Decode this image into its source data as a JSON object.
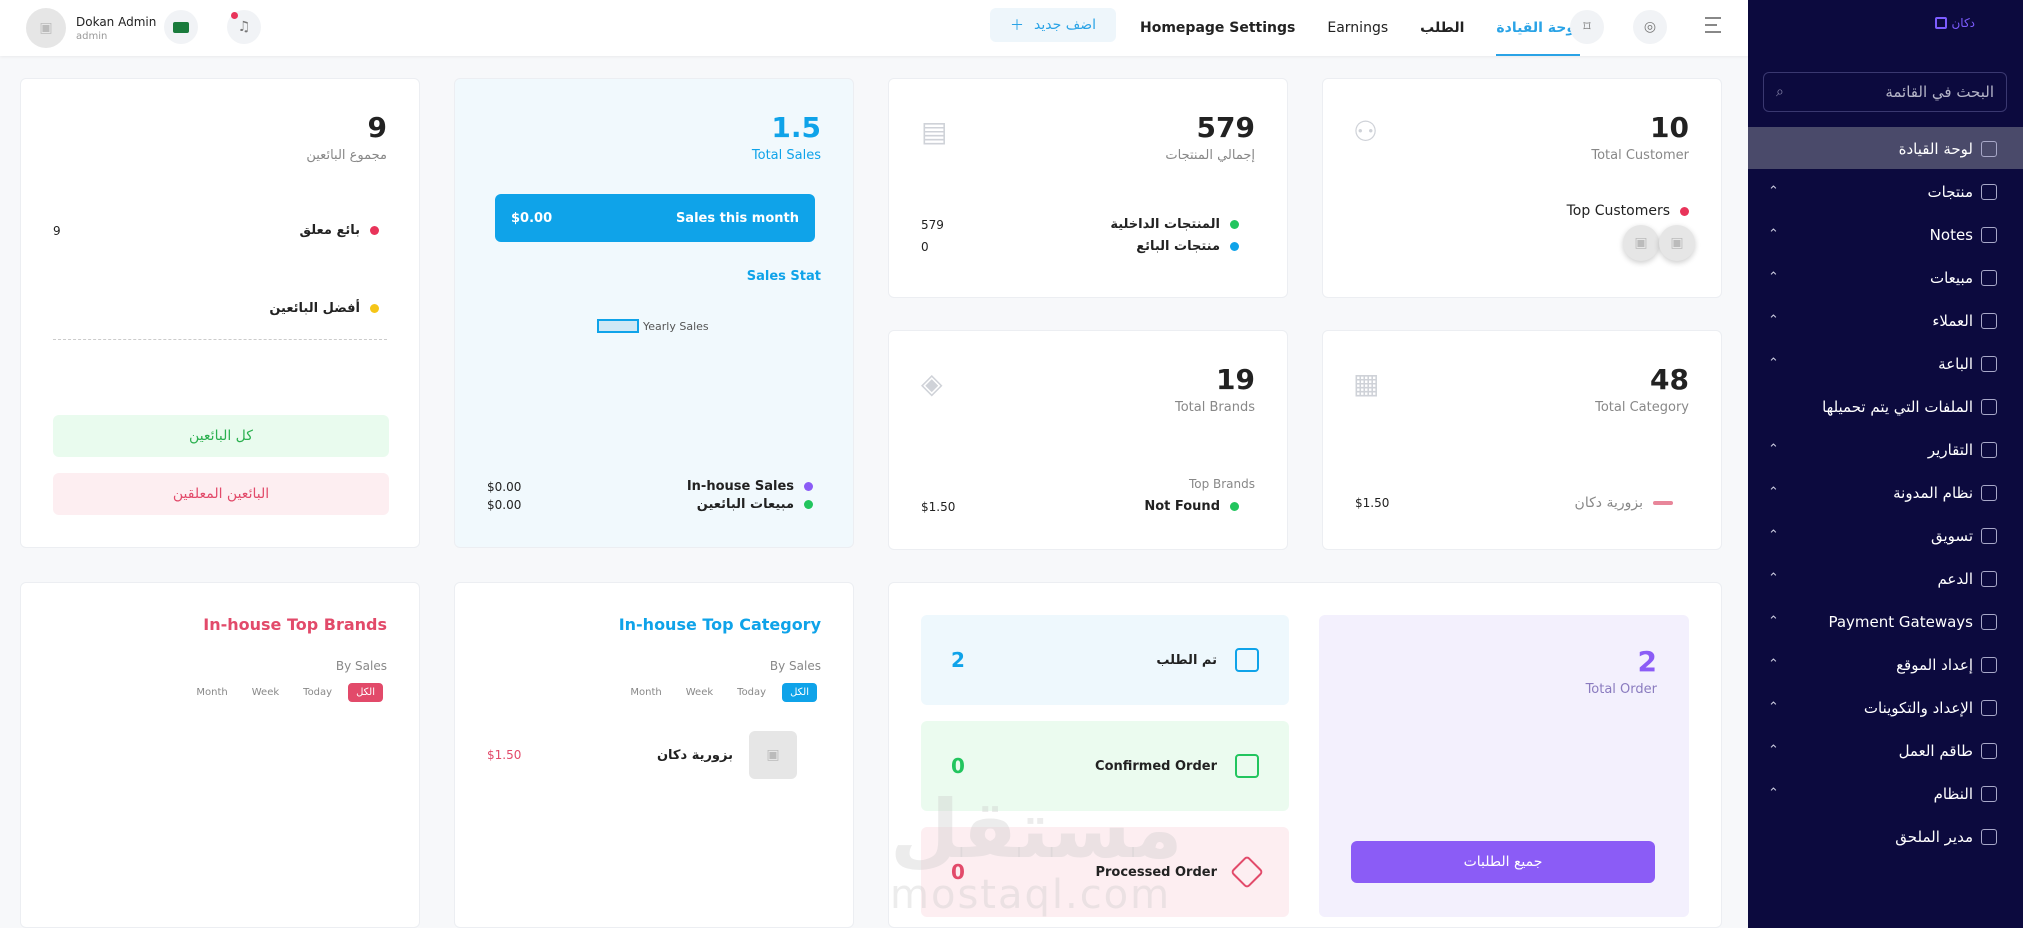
{
  "sidebar": {
    "logo": "دكان",
    "search_placeholder": "البحث في القائمة",
    "items": [
      {
        "label": "لوحة القيادة",
        "icon": "dashboard-icon",
        "chevron": false
      },
      {
        "label": "منتجات",
        "icon": "box-icon",
        "chevron": true
      },
      {
        "label": "Notes",
        "icon": "note-icon",
        "chevron": true
      },
      {
        "label": "مبيعات",
        "icon": "chart-icon",
        "chevron": true
      },
      {
        "label": "العملاء",
        "icon": "users-icon",
        "chevron": true
      },
      {
        "label": "الباعة",
        "icon": "store-icon",
        "chevron": true
      },
      {
        "label": "الملفات التي يتم تحميلها",
        "icon": "upload-icon",
        "chevron": false
      },
      {
        "label": "التقارير",
        "icon": "report-icon",
        "chevron": true
      },
      {
        "label": "نظام المدونة",
        "icon": "blog-icon",
        "chevron": true
      },
      {
        "label": "تسويق",
        "icon": "megaphone-icon",
        "chevron": true
      },
      {
        "label": "الدعم",
        "icon": "support-icon",
        "chevron": true
      },
      {
        "label": "Payment Gateways",
        "icon": "card-icon",
        "chevron": true
      },
      {
        "label": "إعداد الموقع",
        "icon": "site-settings-icon",
        "chevron": true
      },
      {
        "label": "الإعداد والتكوينات",
        "icon": "gear-icon",
        "chevron": true
      },
      {
        "label": "طاقم العمل",
        "icon": "staff-icon",
        "chevron": true
      },
      {
        "label": "النظام",
        "icon": "system-icon",
        "chevron": true
      },
      {
        "label": "مدير الملحق",
        "icon": "puzzle-icon",
        "chevron": false
      }
    ]
  },
  "header": {
    "admin_name": "Dokan Admin",
    "admin_role": "admin",
    "add_new": "اضف جديد",
    "tabs": [
      "Homepage Settings",
      "Earnings",
      "الطلب",
      "لوحة القيادة"
    ]
  },
  "cards": {
    "customers": {
      "value": "10",
      "label": "Total Customer",
      "top_label": "Top Customers"
    },
    "products": {
      "value": "579",
      "label": "إجمالي المنتجات",
      "inhouse_label": "المنتجات الداخلية",
      "inhouse_value": "579",
      "seller_label": "منتجات البائع",
      "seller_value": "0"
    },
    "sales": {
      "value": "1.5",
      "label": "Total Sales",
      "month_label": "Sales this month",
      "month_value": "$0.00",
      "stat_title": "Sales Stat",
      "legend": "Yearly Sales",
      "inhouse_label": "In-house Sales",
      "inhouse_value": "$0.00",
      "seller_label": "مبيعات البائعين",
      "seller_value": "$0.00"
    },
    "sellers": {
      "value": "9",
      "label": "مجموع البائعين",
      "pending_label": "بائع معلق",
      "pending_value": "9",
      "best_label": "أفضل البائعين",
      "all_btn": "كل البائعين",
      "pending_btn": "البائعين المعلقين"
    },
    "category": {
      "value": "48",
      "label": "Total Category",
      "item_label": "بزورية دكان",
      "item_value": "$1.50"
    },
    "brands": {
      "value": "19",
      "label": "Total Brands",
      "top_title": "Top Brands",
      "item_label": "Not Found",
      "item_value": "$1.50"
    },
    "orders": {
      "value": "2",
      "label": "Total Order",
      "all_btn": "جميع الطلبات",
      "placed_label": "تم الطلب",
      "placed_value": "2",
      "confirmed_label": "Confirmed Order",
      "confirmed_value": "0",
      "processed_label": "Processed Order",
      "processed_value": "0"
    },
    "top_category": {
      "title": "In-house Top Category",
      "by": "By Sales",
      "tabs": [
        "Month",
        "Week",
        "Today",
        "الكل"
      ],
      "item_label": "بزورية دكان",
      "item_value": "$1.50"
    },
    "top_brands": {
      "title": "In-house Top Brands",
      "by": "By Sales",
      "tabs": [
        "Month",
        "Week",
        "Today",
        "الكل"
      ]
    }
  },
  "watermark": {
    "ar": "مستقل",
    "en": "mostaql.com"
  },
  "colors": {
    "accent": "#2aa3e6",
    "sidebar": "#0c0a3e",
    "purple": "#8b5cf6",
    "pink": "#e24a6a",
    "green": "#22c55e"
  }
}
